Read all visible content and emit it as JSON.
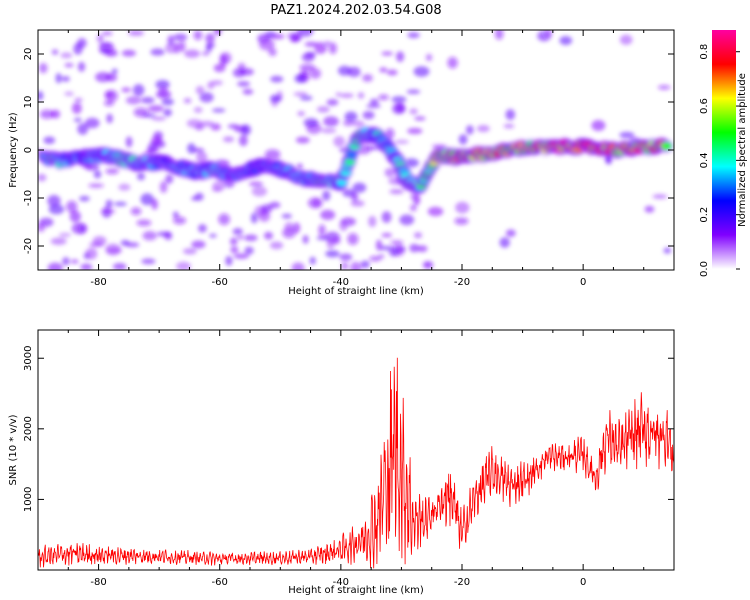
{
  "title": "PAZ1.2024.202.03.54.G08",
  "chart_data": [
    {
      "type": "heatmap",
      "name": "spectrogram",
      "xlabel": "Height of straight line (km)",
      "ylabel": "Frequency (Hz)",
      "xlim": [
        -90,
        15
      ],
      "ylim": [
        -25,
        25
      ],
      "x_ticks": [
        -80,
        -60,
        -40,
        -20,
        0
      ],
      "y_ticks": [
        -20,
        -10,
        0,
        10,
        20
      ],
      "colorbar": {
        "label": "Normalized spectral amplitude",
        "range": [
          0,
          0.88
        ],
        "ticks": [
          "0.0",
          "0.2",
          "0.4",
          "0.6",
          "0.8"
        ],
        "colormap": "gist_rainbow_r",
        "colors": [
          "#ffffff",
          "#8000ff",
          "#0000ff",
          "#00ffff",
          "#00ff00",
          "#ffff00",
          "#ff0000",
          "#ff00a0"
        ]
      },
      "signal_track": [
        {
          "x": -89,
          "f": -2.0,
          "a": 0.45
        },
        {
          "x": -86,
          "f": -2.2,
          "a": 0.35
        },
        {
          "x": -82,
          "f": -1.5,
          "a": 0.3
        },
        {
          "x": -79,
          "f": -1.0,
          "a": 0.3
        },
        {
          "x": -76,
          "f": -2.0,
          "a": 0.4
        },
        {
          "x": -73,
          "f": -3.0,
          "a": 0.35
        },
        {
          "x": -70,
          "f": -2.5,
          "a": 0.3
        },
        {
          "x": -67,
          "f": -3.5,
          "a": 0.35
        },
        {
          "x": -64,
          "f": -4.5,
          "a": 0.3
        },
        {
          "x": -61,
          "f": -4.0,
          "a": 0.35
        },
        {
          "x": -58,
          "f": -5.5,
          "a": 0.3
        },
        {
          "x": -55,
          "f": -4.0,
          "a": 0.3
        },
        {
          "x": -52,
          "f": -3.0,
          "a": 0.3
        },
        {
          "x": -49,
          "f": -4.5,
          "a": 0.3
        },
        {
          "x": -46,
          "f": -6.0,
          "a": 0.35
        },
        {
          "x": -43,
          "f": -6.5,
          "a": 0.4
        },
        {
          "x": -40,
          "f": -7.0,
          "a": 0.35
        },
        {
          "x": -37,
          "f": 3.5,
          "a": 0.4
        },
        {
          "x": -34,
          "f": 3.0,
          "a": 0.35
        },
        {
          "x": -31,
          "f": -1.5,
          "a": 0.35
        },
        {
          "x": -29,
          "f": -6.5,
          "a": 0.4
        },
        {
          "x": -27,
          "f": -7.5,
          "a": 0.4
        },
        {
          "x": -24,
          "f": -1.0,
          "a": 0.55
        },
        {
          "x": -21,
          "f": -1.5,
          "a": 0.65
        },
        {
          "x": -18,
          "f": -1.0,
          "a": 0.6
        },
        {
          "x": -14,
          "f": -0.5,
          "a": 0.65
        },
        {
          "x": -10,
          "f": 0.5,
          "a": 0.6
        },
        {
          "x": -6,
          "f": 0.5,
          "a": 0.7
        },
        {
          "x": -2,
          "f": 0.8,
          "a": 0.75
        },
        {
          "x": 2,
          "f": 0.5,
          "a": 0.75
        },
        {
          "x": 6,
          "f": 0.0,
          "a": 0.65
        },
        {
          "x": 10,
          "f": 0.5,
          "a": 0.7
        },
        {
          "x": 14,
          "f": 1.0,
          "a": 0.6
        }
      ]
    },
    {
      "type": "line",
      "name": "snr",
      "xlabel": "Height of straight line (km)",
      "ylabel": "SNR (10 * v/v)",
      "xlim": [
        -90,
        15
      ],
      "ylim": [
        0,
        3400
      ],
      "x_ticks": [
        -80,
        -60,
        -40,
        -20,
        0
      ],
      "y_ticks": [
        1000,
        2000,
        3000
      ],
      "line_color": "#ff0000",
      "envelope": [
        {
          "x": -90,
          "mean": 180,
          "amp": 140
        },
        {
          "x": -85,
          "mean": 230,
          "amp": 170
        },
        {
          "x": -80,
          "mean": 210,
          "amp": 140
        },
        {
          "x": -75,
          "mean": 200,
          "amp": 120
        },
        {
          "x": -70,
          "mean": 190,
          "amp": 100
        },
        {
          "x": -60,
          "mean": 160,
          "amp": 90
        },
        {
          "x": -50,
          "mean": 170,
          "amp": 90
        },
        {
          "x": -45,
          "mean": 190,
          "amp": 110
        },
        {
          "x": -42,
          "mean": 240,
          "amp": 150
        },
        {
          "x": -39,
          "mean": 320,
          "amp": 220
        },
        {
          "x": -36,
          "mean": 450,
          "amp": 350
        },
        {
          "x": -34,
          "mean": 700,
          "amp": 700
        },
        {
          "x": -32,
          "mean": 1400,
          "amp": 1300
        },
        {
          "x": -31,
          "mean": 1800,
          "amp": 1500
        },
        {
          "x": -30,
          "mean": 1400,
          "amp": 1200
        },
        {
          "x": -28,
          "mean": 700,
          "amp": 550
        },
        {
          "x": -26,
          "mean": 700,
          "amp": 300
        },
        {
          "x": -24,
          "mean": 900,
          "amp": 200
        },
        {
          "x": -22,
          "mean": 1100,
          "amp": 600
        },
        {
          "x": -20,
          "mean": 500,
          "amp": 350
        },
        {
          "x": -18,
          "mean": 1000,
          "amp": 300
        },
        {
          "x": -15,
          "mean": 1400,
          "amp": 400
        },
        {
          "x": -12,
          "mean": 1200,
          "amp": 300
        },
        {
          "x": -9,
          "mean": 1300,
          "amp": 250
        },
        {
          "x": -6,
          "mean": 1600,
          "amp": 200
        },
        {
          "x": -3,
          "mean": 1600,
          "amp": 200
        },
        {
          "x": 0,
          "mean": 1650,
          "amp": 250
        },
        {
          "x": 2,
          "mean": 1300,
          "amp": 300
        },
        {
          "x": 4,
          "mean": 1900,
          "amp": 400
        },
        {
          "x": 6,
          "mean": 1700,
          "amp": 400
        },
        {
          "x": 8,
          "mean": 1900,
          "amp": 450
        },
        {
          "x": 10,
          "mean": 2000,
          "amp": 500
        },
        {
          "x": 12,
          "mean": 1900,
          "amp": 450
        },
        {
          "x": 14,
          "mean": 1900,
          "amp": 400
        },
        {
          "x": 15,
          "mean": 1500,
          "amp": 300
        }
      ]
    }
  ]
}
